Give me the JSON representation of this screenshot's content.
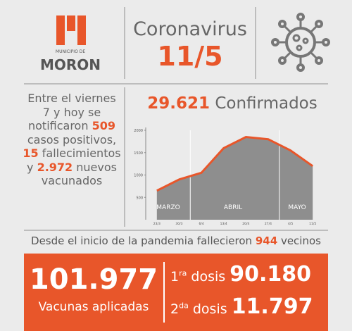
{
  "logo": {
    "small": "MUNICIPIO DE",
    "name": "MORON"
  },
  "header": {
    "title": "Coronavirus",
    "date": "11/5"
  },
  "summary": {
    "t1": "Entre el viernes 7 y hoy se notificaron",
    "cases": "509",
    "t2": "casos positivos,",
    "deaths": "15",
    "t3": "fallecimientos y",
    "vaccinated": "2.972",
    "t4": "nuevos vacunados"
  },
  "confirmed": {
    "value": "29.621",
    "label": "Confirmados"
  },
  "chart_data": {
    "type": "area",
    "categories": [
      "23/3",
      "30/3",
      "6/4",
      "13/4",
      "20/4",
      "27/4",
      "4/5",
      "11/5"
    ],
    "values": [
      650,
      900,
      1050,
      1600,
      1850,
      1800,
      1550,
      1200
    ],
    "color": "#8e8e8e",
    "line_color": "#e8562a",
    "ylim": [
      0,
      2000
    ],
    "yticks": [
      500,
      1000,
      1500,
      2000
    ],
    "months": [
      "MARZO",
      "ABRIL",
      "MAYO"
    ]
  },
  "deaths_line": {
    "t1": "Desde el inicio de la pandemia fallecieron",
    "value": "944",
    "t2": "vecinos"
  },
  "vaccines": {
    "total": "101.977",
    "total_label": "Vacunas aplicadas",
    "dose1": {
      "num": "1",
      "sup": "ra",
      "word": "dosis",
      "value": "90.180"
    },
    "dose2": {
      "num": "2",
      "sup": "da",
      "word": "dosis",
      "value": "11.797"
    }
  }
}
